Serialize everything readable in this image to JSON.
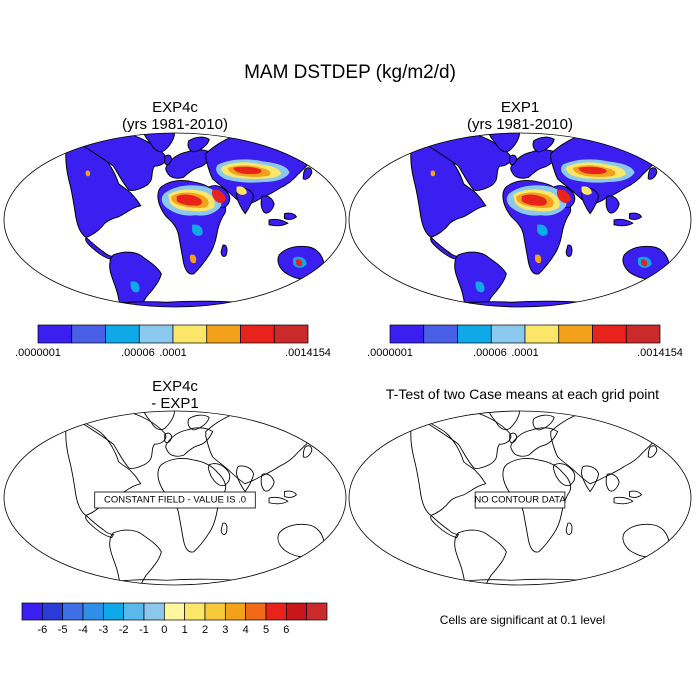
{
  "title": "MAM DSTDEP (kg/m2/d)",
  "colors": {
    "land": "#3b1ef0",
    "c_low": "#4a5fe8",
    "c_cyan": "#0fa8e8",
    "c_lightblue": "#8ac8ee",
    "c_yellow": "#fbe66a",
    "c_orange": "#f3a01a",
    "c_red": "#e8231c",
    "c_darkred": "#cb2a2d",
    "ocean": "#ffffff",
    "outline": "#000000"
  },
  "panels": [
    {
      "id": "exp4c",
      "line1": "EXP4c",
      "line2": "(yrs 1981-2010)",
      "message": ""
    },
    {
      "id": "exp1",
      "line1": "EXP1",
      "line2": "(yrs 1981-2010)",
      "message": ""
    },
    {
      "id": "diff",
      "line1": "EXP4c",
      "line2": "- EXP1",
      "message": "CONSTANT FIELD - VALUE IS .0"
    },
    {
      "id": "ttest",
      "line1": "T-Test of two Case means at each grid point",
      "line2": "",
      "message": "NO CONTOUR DATA"
    }
  ],
  "note": "Cells are significant at 0.1 level",
  "chart_data": [
    {
      "type": "heatmap",
      "title": "EXP4c (yrs 1981-2010)",
      "projection": "Robinson",
      "colorbar": {
        "colors": [
          "#3b1ef0",
          "#4a5fe8",
          "#0fa8e8",
          "#8ac8ee",
          "#fbe66a",
          "#f3a01a",
          "#e8231c",
          "#cb2a2d"
        ],
        "tick_labels": [
          ".0000001",
          ".00006",
          ".0001",
          ".0014154"
        ]
      }
    },
    {
      "type": "heatmap",
      "title": "EXP1 (yrs 1981-2010)",
      "projection": "Robinson",
      "colorbar": {
        "colors": [
          "#3b1ef0",
          "#4a5fe8",
          "#0fa8e8",
          "#8ac8ee",
          "#fbe66a",
          "#f3a01a",
          "#e8231c",
          "#cb2a2d"
        ],
        "tick_labels": [
          ".0000001",
          ".00006",
          ".0001",
          ".0014154"
        ]
      }
    },
    {
      "type": "heatmap",
      "title": "EXP4c - EXP1",
      "projection": "Robinson",
      "annotation": "CONSTANT FIELD - VALUE IS .0",
      "colorbar": {
        "colors": [
          "#3b1ef0",
          "#2a3cd8",
          "#3f6fe6",
          "#2e8ee8",
          "#0fa8e8",
          "#5ab8ec",
          "#8ac8ee",
          "#fff7a0",
          "#fbe66a",
          "#f7c83a",
          "#f3a01a",
          "#f06a18",
          "#e8231c",
          "#c7151a",
          "#cb2a2d"
        ],
        "tick_labels": [
          "-6",
          "-5",
          "-4",
          "-3",
          "-2",
          "-1",
          "0",
          "1",
          "2",
          "3",
          "4",
          "5",
          "6"
        ]
      }
    },
    {
      "type": "heatmap",
      "title": "T-Test of two Case means at each grid point",
      "projection": "Robinson",
      "annotation": "NO CONTOUR DATA",
      "note": "Cells are significant at 0.1 level"
    }
  ]
}
